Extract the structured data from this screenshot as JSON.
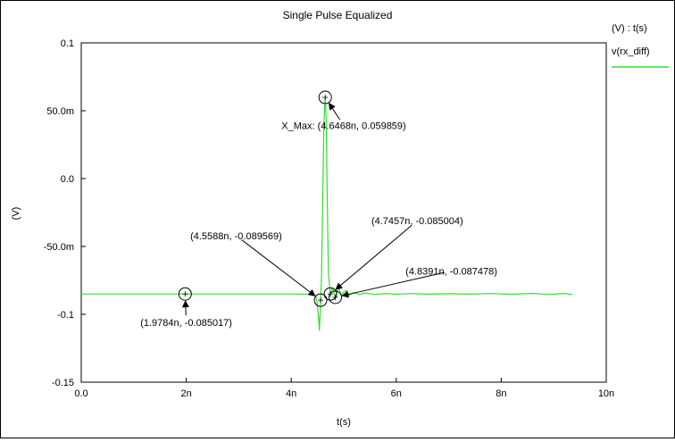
{
  "chart_data": {
    "type": "line",
    "title": "Single Pulse Equalized",
    "xlabel": "t(s)",
    "ylabel": "(V)",
    "xlim": [
      0,
      1e-08
    ],
    "ylim": [
      -0.15,
      0.1
    ],
    "x_ticks": [
      {
        "value": 0,
        "label": "0.0"
      },
      {
        "value": 2e-09,
        "label": "2n"
      },
      {
        "value": 4e-09,
        "label": "4n"
      },
      {
        "value": 6e-09,
        "label": "6n"
      },
      {
        "value": 8e-09,
        "label": "8n"
      },
      {
        "value": 1e-08,
        "label": "10n"
      }
    ],
    "y_ticks": [
      {
        "value": 0.1,
        "label": "0.1"
      },
      {
        "value": 0.05,
        "label": "50.0m"
      },
      {
        "value": 0.0,
        "label": "0.0"
      },
      {
        "value": -0.05,
        "label": "-50.0m"
      },
      {
        "value": -0.1,
        "label": "-0.1"
      },
      {
        "value": -0.15,
        "label": "-0.15"
      }
    ],
    "legend": {
      "header": "(V) : t(s)",
      "position": "right",
      "entries": [
        {
          "name": "v(rx_diff)",
          "color": "#33dd33"
        }
      ]
    },
    "series": [
      {
        "name": "v(rx_diff)",
        "color": "#33dd33",
        "points": [
          [
            0.0,
            -0.085
          ],
          [
            1e-09,
            -0.085
          ],
          [
            1.9784e-09,
            -0.085017
          ],
          [
            3e-09,
            -0.085
          ],
          [
            4e-09,
            -0.085
          ],
          [
            4.3e-09,
            -0.0852
          ],
          [
            4.42e-09,
            -0.0853
          ],
          [
            4.47e-09,
            -0.0865
          ],
          [
            4.5e-09,
            -0.094
          ],
          [
            4.52e-09,
            -0.103
          ],
          [
            4.535e-09,
            -0.112
          ],
          [
            4.545e-09,
            -0.104
          ],
          [
            4.5588e-09,
            -0.089569
          ],
          [
            4.575e-09,
            -0.075
          ],
          [
            4.59e-09,
            -0.04
          ],
          [
            4.605e-09,
            0.0
          ],
          [
            4.62e-09,
            0.04
          ],
          [
            4.6468e-09,
            0.059859
          ],
          [
            4.665e-09,
            0.045
          ],
          [
            4.68e-09,
            0.0
          ],
          [
            4.695e-09,
            -0.04
          ],
          [
            4.71e-09,
            -0.07
          ],
          [
            4.7457e-09,
            -0.085004
          ],
          [
            4.775e-09,
            -0.081
          ],
          [
            4.8e-09,
            -0.082
          ],
          [
            4.8391e-09,
            -0.087478
          ],
          [
            4.87e-09,
            -0.083
          ],
          [
            4.9e-09,
            -0.08
          ],
          [
            4.95e-09,
            -0.086
          ],
          [
            5e-09,
            -0.0835
          ],
          [
            5.05e-09,
            -0.0825
          ],
          [
            5.1e-09,
            -0.086
          ],
          [
            5.2e-09,
            -0.0838
          ],
          [
            5.3e-09,
            -0.0855
          ],
          [
            5.4e-09,
            -0.0843
          ],
          [
            5.6e-09,
            -0.0853
          ],
          [
            5.8e-09,
            -0.0846
          ],
          [
            6e-09,
            -0.0852
          ],
          [
            6.3e-09,
            -0.0847
          ],
          [
            6.6e-09,
            -0.0851
          ],
          [
            7e-09,
            -0.0848
          ],
          [
            7.4e-09,
            -0.0851
          ],
          [
            7.8e-09,
            -0.0847
          ],
          [
            8.2e-09,
            -0.0852
          ],
          [
            8.6e-09,
            -0.0846
          ],
          [
            8.9e-09,
            -0.0853
          ],
          [
            9.2e-09,
            -0.0846
          ],
          [
            9.35e-09,
            -0.0855
          ]
        ]
      }
    ],
    "markers": [
      {
        "x": 4.6468e-09,
        "y": 0.059859,
        "label": "X_Max: (4.6468n, 0.059859)",
        "label_x": 5e-09,
        "label_y": 0.039
      },
      {
        "x": 4.5588e-09,
        "y": -0.089569,
        "label": "(4.5588n, -0.089569)",
        "label_x": 2.95e-09,
        "label_y": -0.042
      },
      {
        "x": 4.7457e-09,
        "y": -0.085004,
        "label": "(4.7457n, -0.085004)",
        "label_x": 6.4e-09,
        "label_y": -0.031
      },
      {
        "x": 4.8391e-09,
        "y": -0.087478,
        "label": "(4.8391n, -0.087478)",
        "label_x": 7.05e-09,
        "label_y": -0.068
      },
      {
        "x": 1.9784e-09,
        "y": -0.085017,
        "label": "(1.9784n, -0.085017)",
        "label_x": 2e-09,
        "label_y": -0.106
      }
    ],
    "grid": false
  }
}
